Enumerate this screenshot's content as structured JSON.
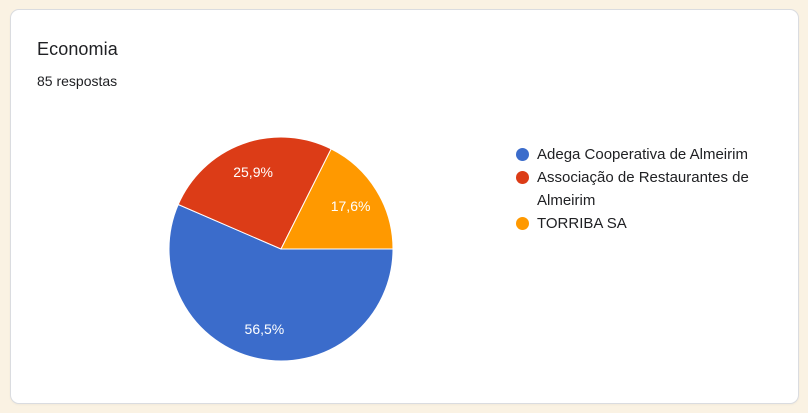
{
  "card": {
    "title": "Economia",
    "subtitle": "85 respostas"
  },
  "colors": {
    "page_background": "#FAF2E3",
    "card_background": "#FFFFFF",
    "card_border": "#DADCE0",
    "text": "#202124",
    "slice_label_text": "#FFFFFF"
  },
  "chart_data": {
    "type": "pie",
    "title": "Economia",
    "subtitle": "85 respostas",
    "legend_position": "right",
    "start_angle_deg": 0,
    "direction": "clockwise",
    "slices": [
      {
        "label": "Adega Cooperativa de Almeirim",
        "percent": 56.5,
        "percent_label": "56,5%",
        "color": "#3B6CCB"
      },
      {
        "label": "Associação de Restaurantes de Almeirim",
        "percent": 25.9,
        "percent_label": "25,9%",
        "color": "#DC3C17"
      },
      {
        "label": "TORRIBA SA",
        "percent": 17.6,
        "percent_label": "17,6%",
        "color": "#FF9900"
      }
    ]
  }
}
